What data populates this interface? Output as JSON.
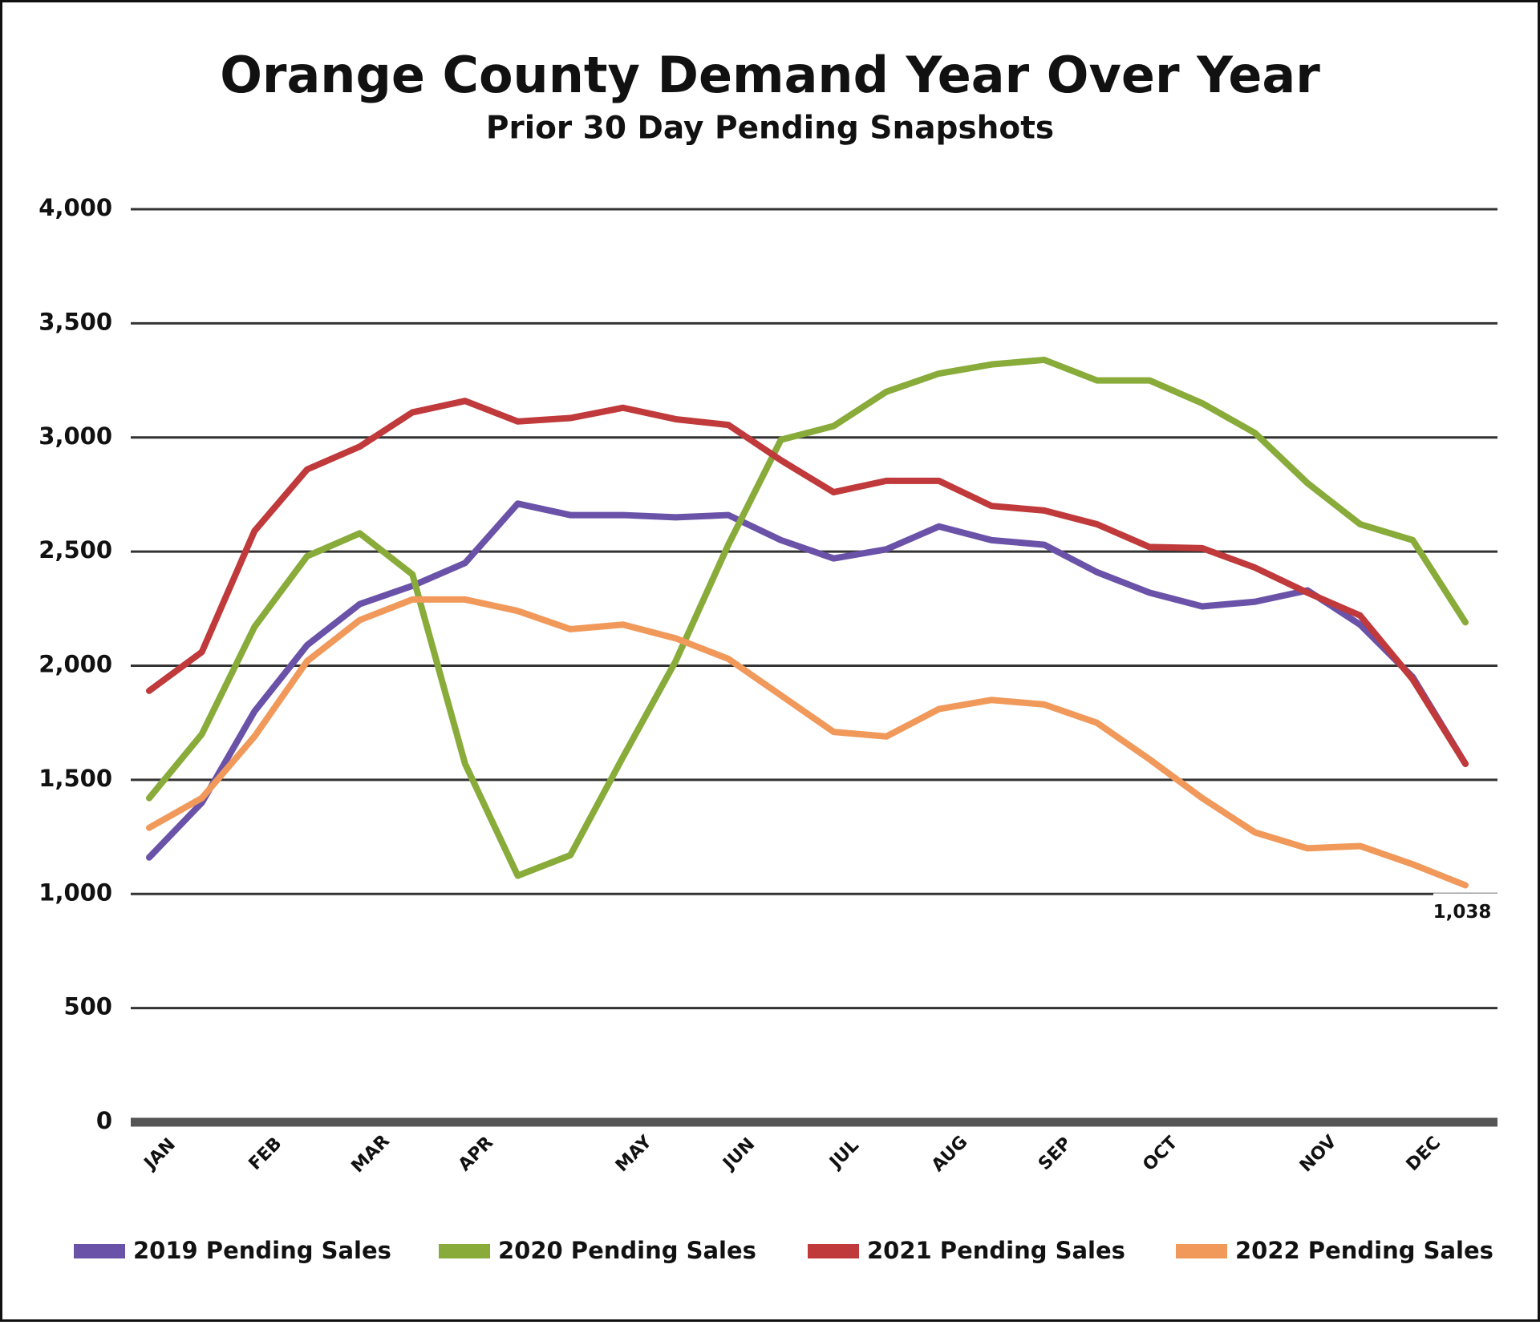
{
  "chart_data": {
    "type": "line",
    "title": "Orange County Demand Year Over Year",
    "subtitle": "Prior 30 Day Pending Snapshots",
    "categories": [
      "JAN",
      null,
      "FEB",
      null,
      "MAR",
      null,
      "APR",
      null,
      null,
      "MAY",
      null,
      "JUN",
      null,
      "JUL",
      null,
      "AUG",
      null,
      "SEP",
      null,
      "OCT",
      null,
      null,
      "NOV",
      null,
      "DEC",
      null
    ],
    "ylim": [
      0,
      4000
    ],
    "yticks": [
      0,
      500,
      {
        "value": 1000,
        "label": "1,000"
      },
      {
        "value": 1500,
        "label": "1,500"
      },
      {
        "value": 2000,
        "label": "2,000"
      },
      {
        "value": 2500,
        "label": "2,500"
      },
      {
        "value": 3000,
        "label": "3,000"
      },
      {
        "value": 3500,
        "label": "3,500"
      },
      {
        "value": 4000,
        "label": "4,000"
      }
    ],
    "grid": true,
    "legend": "bottom",
    "series": [
      {
        "name": "2019 Pending Sales",
        "color": "#6a52a8",
        "values": [
          1160,
          1400,
          1800,
          2090,
          2270,
          2350,
          2450,
          2710,
          2660,
          2660,
          2650,
          2660,
          2550,
          2470,
          2510,
          2610,
          2550,
          2530,
          2410,
          2320,
          2260,
          2280,
          2330,
          2180,
          1950,
          1570
        ]
      },
      {
        "name": "2020 Pending Sales",
        "color": "#88ab3a",
        "values": [
          1420,
          1700,
          2170,
          2480,
          2580,
          2400,
          1570,
          1080,
          1170,
          1600,
          2020,
          2530,
          2990,
          3050,
          3200,
          3280,
          3320,
          3340,
          3250,
          3250,
          3150,
          3020,
          2800,
          2620,
          2550,
          2190
        ]
      },
      {
        "name": "2021 Pending Sales",
        "color": "#c0393b",
        "values": [
          1890,
          2060,
          2590,
          2860,
          2960,
          3110,
          3160,
          3070,
          3085,
          3130,
          3080,
          3055,
          2900,
          2760,
          2810,
          2810,
          2700,
          2680,
          2620,
          2520,
          2515,
          2430,
          2320,
          2220,
          1940,
          1570
        ]
      },
      {
        "name": "2022 Pending Sales",
        "color": "#f0995a",
        "values": [
          1290,
          1420,
          1690,
          2020,
          2200,
          2290,
          2290,
          2240,
          2160,
          2180,
          2120,
          2030,
          1870,
          1710,
          1690,
          1810,
          1850,
          1830,
          1750,
          1590,
          1420,
          1270,
          1200,
          1210,
          1130,
          1038
        ],
        "value_labels": [
          null,
          null,
          null,
          null,
          null,
          null,
          null,
          null,
          null,
          null,
          null,
          null,
          null,
          null,
          null,
          null,
          null,
          null,
          null,
          null,
          null,
          null,
          null,
          null,
          null,
          "1,038"
        ]
      }
    ]
  }
}
